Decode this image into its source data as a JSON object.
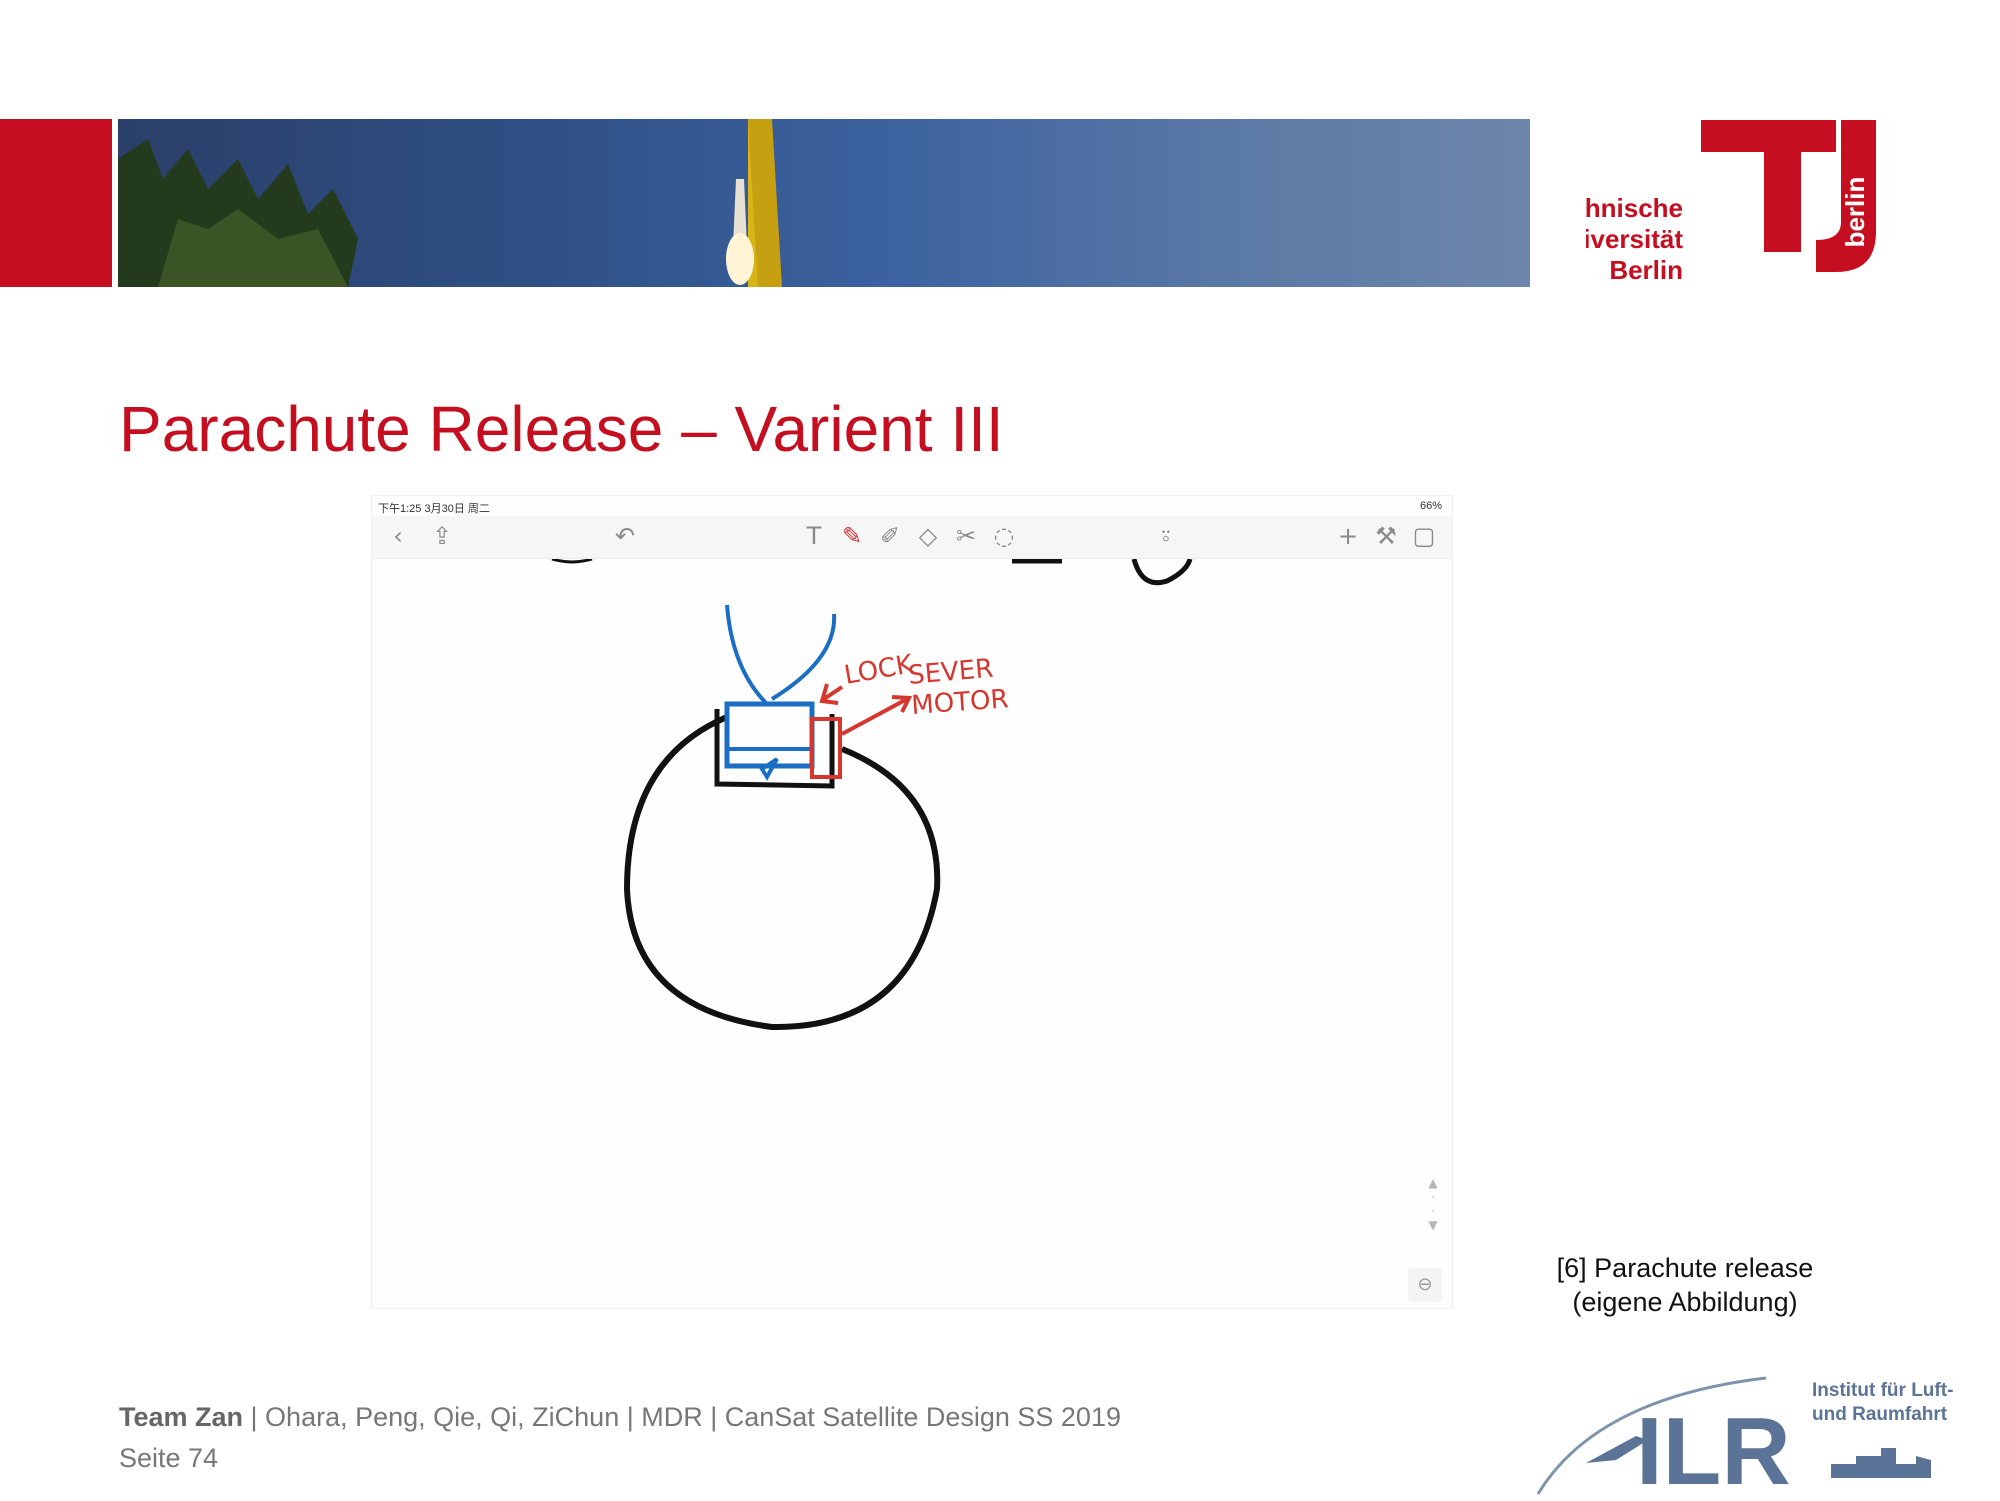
{
  "header": {
    "university_logo": {
      "lines": [
        "Technische",
        "Universität",
        "Berlin"
      ],
      "side_text": "berlin",
      "brand_color": "#c50e1f"
    }
  },
  "slide": {
    "title": "Parachute Release – Varient III",
    "title_color": "#c50e1f"
  },
  "app_screenshot": {
    "status_time": "下午1:25  3月30日 周二",
    "status_right": "66%",
    "toolbar_left_icons": [
      "back-icon",
      "share-icon",
      "undo-icon"
    ],
    "toolbar_center_icons": [
      "text-icon",
      "pen-icon",
      "pencil-icon",
      "eraser-icon",
      "scissors-icon",
      "lasso-icon"
    ],
    "toolbar_right_icons": [
      "microphone-icon",
      "add-icon",
      "wrench-icon",
      "pages-icon"
    ],
    "sketch_labels": {
      "lock": "LOCK",
      "sever": "SEVER",
      "motor": "MOTOR"
    },
    "colors": {
      "blue_ink": "#1a6fc4",
      "red_ink": "#d6362d",
      "black_ink": "#111111"
    }
  },
  "figure_caption": {
    "line1": "[6] Parachute release",
    "line2": "(eigene Abbildung)"
  },
  "footer": {
    "team": "Team Zan",
    "details": " | Ohara, Peng, Qie, Qi, ZiChun | MDR | CanSat Satellite Design SS 2019",
    "page": "Seite 74"
  },
  "institute_logo": {
    "line1": "Institut für Luft-",
    "line2": "und Raumfahrt",
    "acronym": "ILR"
  }
}
